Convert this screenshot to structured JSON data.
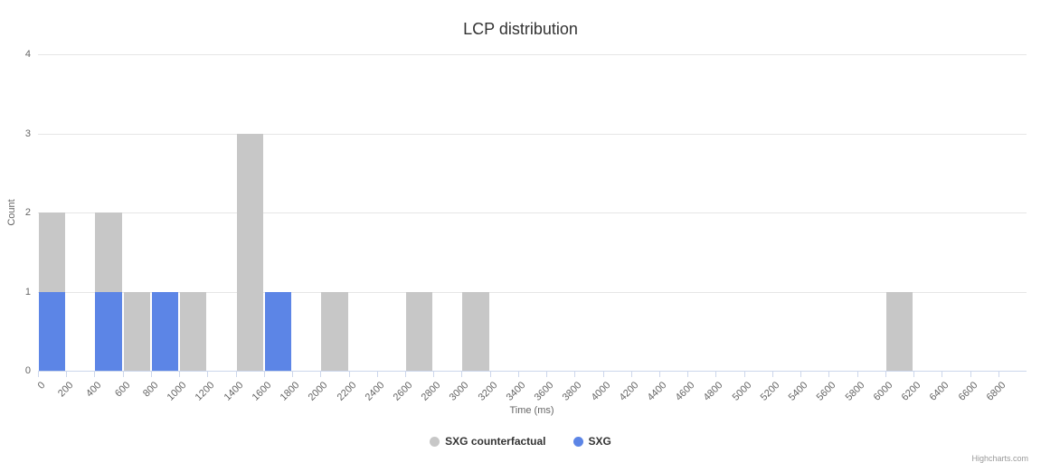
{
  "chart_data": {
    "type": "bar",
    "title": "LCP distribution",
    "xlabel": "Time (ms)",
    "ylabel": "Count",
    "ylim": [
      0,
      4
    ],
    "xlim": [
      0,
      7000
    ],
    "bin_width": 200,
    "x_tick_step": 200,
    "grid": true,
    "legend_position": "bottom-center",
    "y_tick_labels": [
      "0",
      "1",
      "2",
      "3",
      "4"
    ],
    "x_tick_labels": [
      "0",
      "200",
      "400",
      "600",
      "800",
      "1000",
      "1200",
      "1400",
      "1600",
      "1800",
      "2000",
      "2200",
      "2400",
      "2600",
      "2800",
      "3000",
      "3200",
      "3400",
      "3600",
      "3800",
      "4000",
      "4200",
      "4400",
      "4600",
      "4800",
      "5000",
      "5200",
      "5400",
      "5600",
      "5800",
      "6000",
      "6200",
      "6400",
      "6600",
      "6800"
    ],
    "series": [
      {
        "name": "SXG counterfactual",
        "color": "#c7c7c7",
        "points": [
          [
            0,
            2
          ],
          [
            400,
            2
          ],
          [
            600,
            1
          ],
          [
            1000,
            1
          ],
          [
            1400,
            3
          ],
          [
            2000,
            1
          ],
          [
            2600,
            1
          ],
          [
            3000,
            1
          ],
          [
            6000,
            1
          ]
        ]
      },
      {
        "name": "SXG",
        "color": "#5c85e6",
        "points": [
          [
            0,
            1
          ],
          [
            400,
            1
          ],
          [
            800,
            1
          ],
          [
            1600,
            1
          ]
        ]
      }
    ],
    "credits": "Highcharts.com"
  }
}
